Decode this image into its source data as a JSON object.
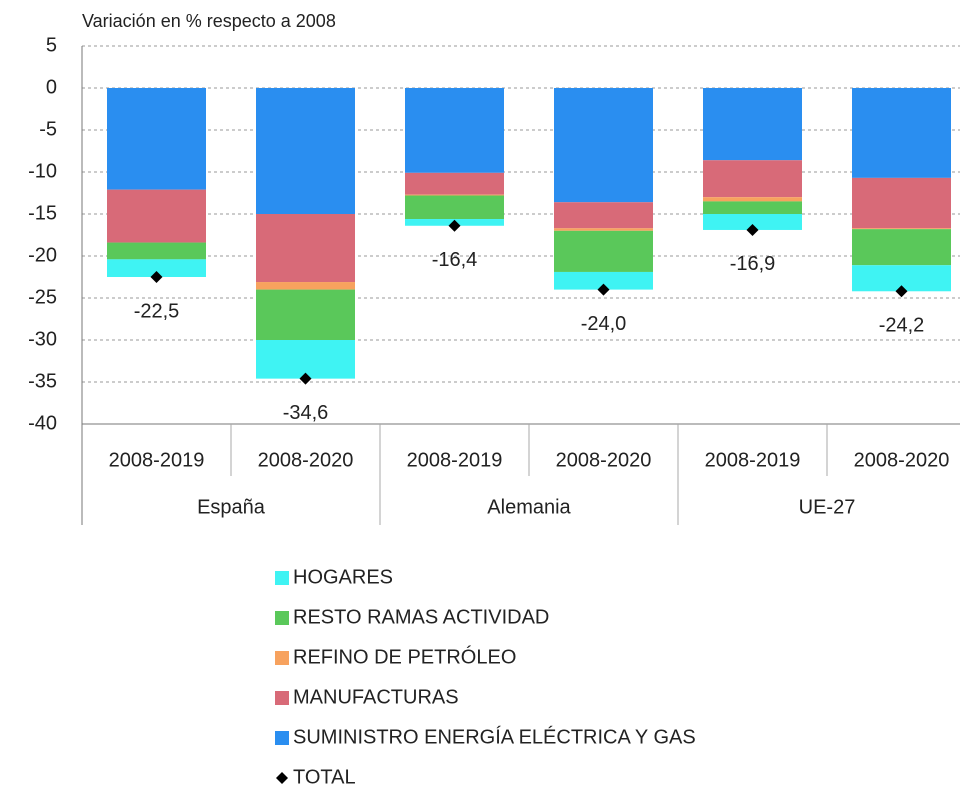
{
  "chart_data": {
    "type": "bar",
    "stacked": true,
    "title": "Variación en % respecto a 2008",
    "categories": [
      "2008-2019",
      "2008-2020",
      "2008-2019",
      "2008-2020",
      "2008-2019",
      "2008-2020"
    ],
    "groups": [
      "España",
      "Alemania",
      "UE-27"
    ],
    "series": [
      {
        "name": "HOGARES",
        "color": "#3ff3f3",
        "values": [
          -2.1,
          -4.6,
          -0.8,
          -2.1,
          -1.9,
          -3.1
        ]
      },
      {
        "name": "RESTO RAMAS ACTIVIDAD",
        "color": "#5ac85a",
        "values": [
          -2.0,
          -6.0,
          -2.8,
          -4.9,
          -1.5,
          -4.3
        ]
      },
      {
        "name": "REFINO DE PETRÓLEO",
        "color": "#f7a25e",
        "values": [
          0,
          -0.9,
          -0.1,
          -0.3,
          -0.5,
          -0.1
        ]
      },
      {
        "name": "MANUFACTURAS",
        "color": "#d86a78",
        "values": [
          -6.3,
          -8.1,
          -2.6,
          -3.1,
          -4.4,
          -6.0
        ]
      },
      {
        "name": "SUMINISTRO ENERGÍA ELÉCTRICA Y GAS",
        "color": "#2a8ef0",
        "values": [
          -12.1,
          -15.0,
          -10.1,
          -13.6,
          -8.6,
          -10.7
        ]
      },
      {
        "name": "TOTAL",
        "color": "#000000",
        "marker": "diamond",
        "values": [
          -22.5,
          -34.6,
          -16.4,
          -24.0,
          -16.9,
          -24.2
        ],
        "value_labels": [
          "-22,5",
          "-34,6",
          "-16,4",
          "-24,0",
          "-16,9",
          "-24,2"
        ]
      }
    ],
    "ylim": [
      -40,
      5
    ],
    "yticks": [
      5,
      0,
      -5,
      -10,
      -15,
      -20,
      -25,
      -30,
      -35,
      -40
    ],
    "grid": true
  }
}
